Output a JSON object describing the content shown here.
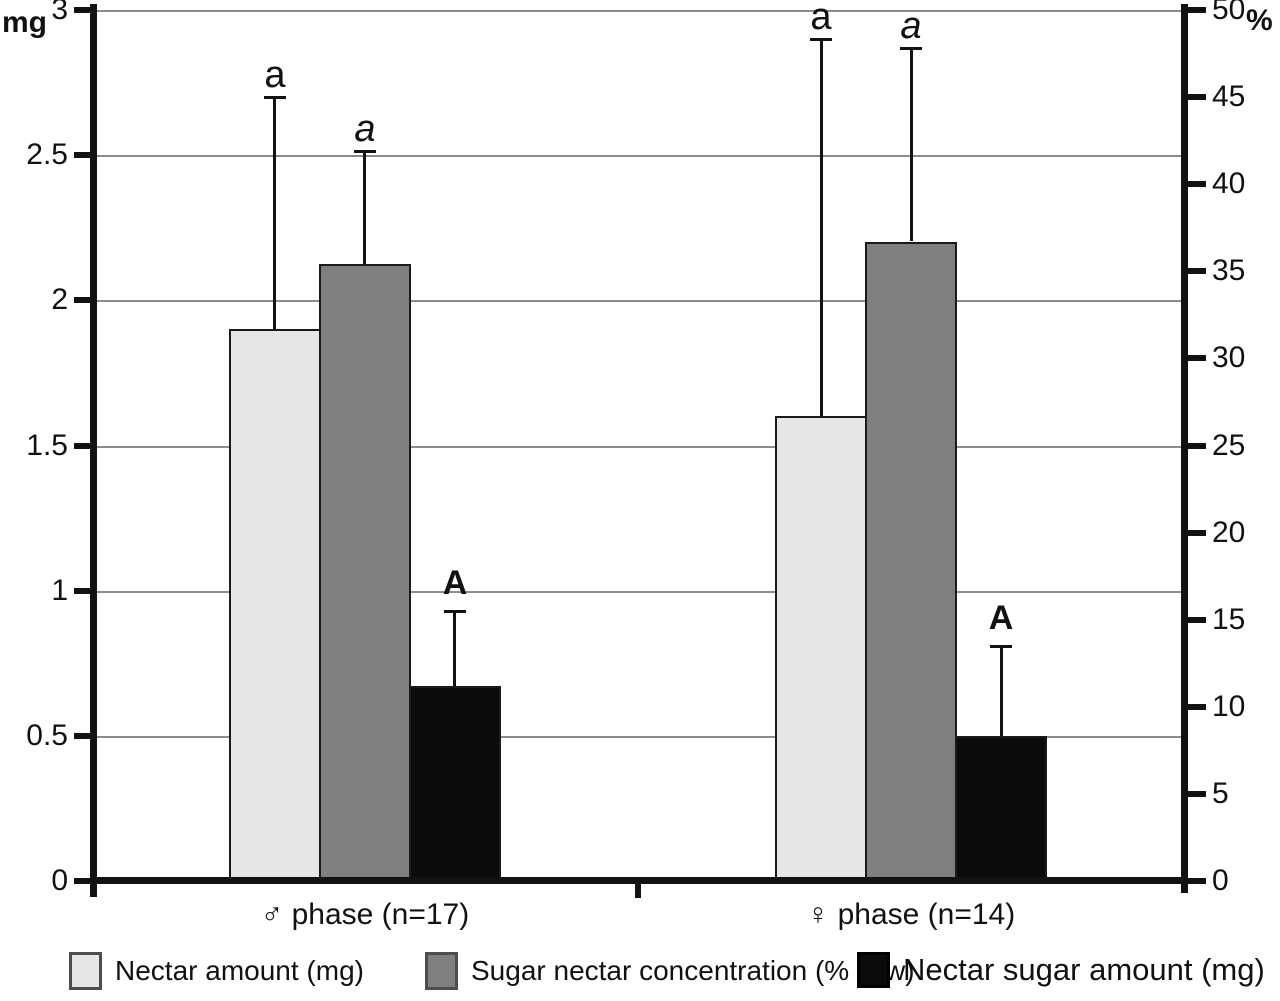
{
  "figure": {
    "background": "#ffffff"
  },
  "chart_data": {
    "type": "bar",
    "title": "",
    "categories": [
      "♂ phase (n=17)",
      "♀ phase (n=14)"
    ],
    "left_axis": {
      "label": "mg",
      "min": 0,
      "max": 3,
      "ticks": [
        0,
        0.5,
        1,
        1.5,
        2,
        2.5,
        3
      ]
    },
    "right_axis": {
      "label": "%",
      "min": 0,
      "max": 50,
      "ticks": [
        0,
        5,
        10,
        15,
        20,
        25,
        30,
        35,
        40,
        45,
        50
      ]
    },
    "grid": "horizontal gridlines at left-axis tick levels",
    "legend_position": "bottom",
    "series": [
      {
        "name": "Nectar amount (mg)",
        "axis": "left",
        "color": "#e6e6e6",
        "values": [
          1.9,
          1.6
        ],
        "error_bar_tops": [
          2.7,
          2.9
        ],
        "sig_labels": [
          "a",
          "a"
        ],
        "sig_style": "normal"
      },
      {
        "name": "Sugar nectar concentration (% w/w)",
        "axis": "right",
        "color": "#7f7f7f",
        "values": [
          35.4,
          36.7
        ],
        "error_bar_tops": [
          41.9,
          47.8
        ],
        "sig_labels": [
          "a",
          "a"
        ],
        "sig_style": "italic"
      },
      {
        "name": "Nectar sugar amount  (mg)",
        "axis": "left",
        "color": "#0b0b0b",
        "values": [
          0.67,
          0.5
        ],
        "error_bar_tops": [
          0.93,
          0.81
        ],
        "sig_labels": [
          "A",
          "A"
        ],
        "sig_style": "bold"
      }
    ]
  }
}
